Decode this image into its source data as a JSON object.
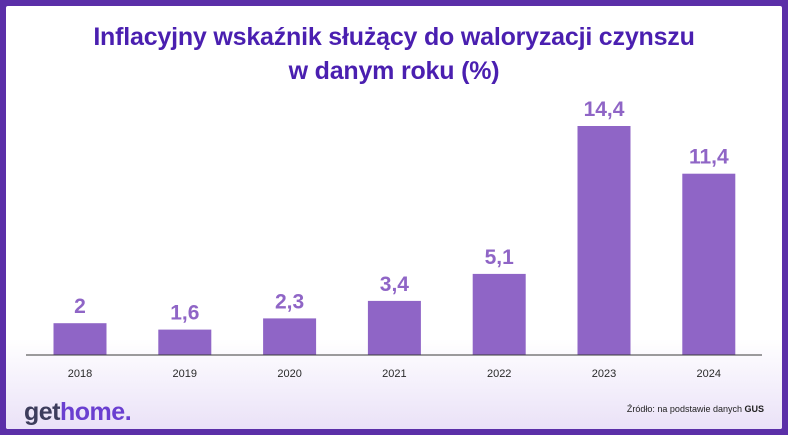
{
  "colors": {
    "frame": "#5b2fa8",
    "title": "#4a1fb0",
    "bar": "#8f65c6",
    "value_label": "#8f65c6",
    "axis": "#3a3a3a",
    "tick_label": "#2a2a2a",
    "logo_get": "#3d3d5c",
    "logo_home": "#6a3fd0"
  },
  "title": {
    "line1": "Inflacyjny wskaźnik służący do waloryzacji czynszu",
    "line2": "w danym roku (%)"
  },
  "chart_data": {
    "type": "bar",
    "title": "Inflacyjny wskaźnik służący do waloryzacji czynszu w danym roku (%)",
    "categories": [
      "2018",
      "2019",
      "2020",
      "2021",
      "2022",
      "2023",
      "2024"
    ],
    "values": [
      2,
      1.6,
      2.3,
      3.4,
      5.1,
      14.4,
      11.4
    ],
    "value_labels": [
      "2",
      "1,6",
      "2,3",
      "3,4",
      "5,1",
      "14,4",
      "11,4"
    ],
    "xlabel": "",
    "ylabel": "",
    "ylim": [
      0,
      14.4
    ],
    "grid": false,
    "legend": "none"
  },
  "branding": {
    "logo_get": "get",
    "logo_home": "home",
    "logo_dot": "."
  },
  "source": {
    "prefix": "Źródło: na podstawie danych ",
    "name": "GUS"
  }
}
